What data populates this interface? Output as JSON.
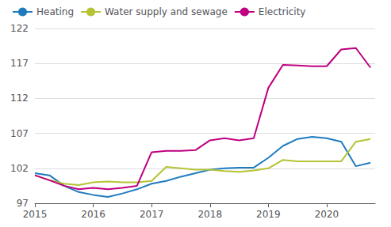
{
  "chart_data": {
    "type": "line",
    "x": [
      2015.0,
      2015.25,
      2015.5,
      2015.75,
      2016.0,
      2016.25,
      2016.5,
      2016.75,
      2017.0,
      2017.25,
      2017.5,
      2017.75,
      2018.0,
      2018.25,
      2018.5,
      2018.75,
      2019.0,
      2019.25,
      2019.5,
      2019.75,
      2020.0,
      2020.25,
      2020.5,
      2020.75
    ],
    "series": [
      {
        "name": "Heating",
        "color": "#1f7bbf",
        "values": [
          101.3,
          101.0,
          99.5,
          98.6,
          98.2,
          97.9,
          98.4,
          99.0,
          99.8,
          100.2,
          100.8,
          101.3,
          101.8,
          102.0,
          102.1,
          102.1,
          103.5,
          105.2,
          106.2,
          106.5,
          106.3,
          105.8,
          102.3,
          102.8
        ]
      },
      {
        "name": "Water supply and sewage",
        "color": "#b5c334",
        "values": [
          101.0,
          100.3,
          99.8,
          99.6,
          100.0,
          100.1,
          100.0,
          100.0,
          100.2,
          102.2,
          102.0,
          101.8,
          101.8,
          101.6,
          101.5,
          101.7,
          102.0,
          103.2,
          103.0,
          103.0,
          103.0,
          103.0,
          105.8,
          106.2
        ]
      },
      {
        "name": "Electricity",
        "color": "#bf0080",
        "values": [
          101.0,
          100.3,
          99.5,
          99.0,
          99.2,
          99.0,
          99.2,
          99.5,
          104.3,
          104.5,
          104.5,
          104.6,
          106.0,
          106.3,
          106.0,
          106.3,
          113.5,
          116.8,
          116.7,
          116.6,
          116.6,
          119.0,
          119.2,
          116.4
        ]
      }
    ],
    "xlim": [
      2015.0,
      2020.83
    ],
    "xticks": [
      2015,
      2016,
      2017,
      2018,
      2019,
      2020
    ],
    "ylim": [
      97,
      122
    ],
    "yticks": [
      97,
      102,
      107,
      112,
      117,
      122
    ],
    "grid": true,
    "legend": "upper left"
  }
}
